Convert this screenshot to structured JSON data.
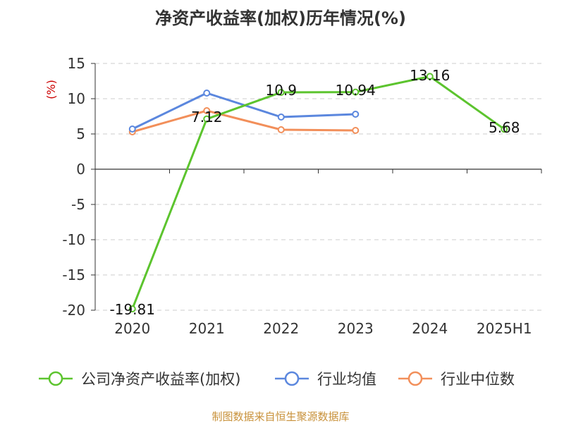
{
  "chart_data": {
    "type": "line",
    "title": "净资产收益率(加权)历年情况(%)",
    "ylabel": "(%)",
    "categories": [
      "2020",
      "2021",
      "2022",
      "2023",
      "2024",
      "2025H1"
    ],
    "ylim": [
      -20,
      15
    ],
    "yticks": [
      15,
      10,
      5,
      0,
      -5,
      -10,
      -15,
      -20
    ],
    "grid": true,
    "legend_position": "bottom",
    "series": [
      {
        "name": "公司净资产收益率(加权)",
        "color": "#5cc42e",
        "values": [
          -19.81,
          7.12,
          10.9,
          10.94,
          13.16,
          5.68
        ],
        "labels": [
          "-19.81",
          "7.12",
          "10.9",
          "10.94",
          "13.16",
          "5.68"
        ]
      },
      {
        "name": "行业均值",
        "color": "#5b87de",
        "values": [
          5.7,
          10.8,
          7.4,
          7.8,
          null,
          null
        ]
      },
      {
        "name": "行业中位数",
        "color": "#f28f5a",
        "values": [
          5.3,
          8.3,
          5.6,
          5.5,
          null,
          null
        ]
      }
    ],
    "source": "制图数据来自恒生聚源数据库"
  }
}
